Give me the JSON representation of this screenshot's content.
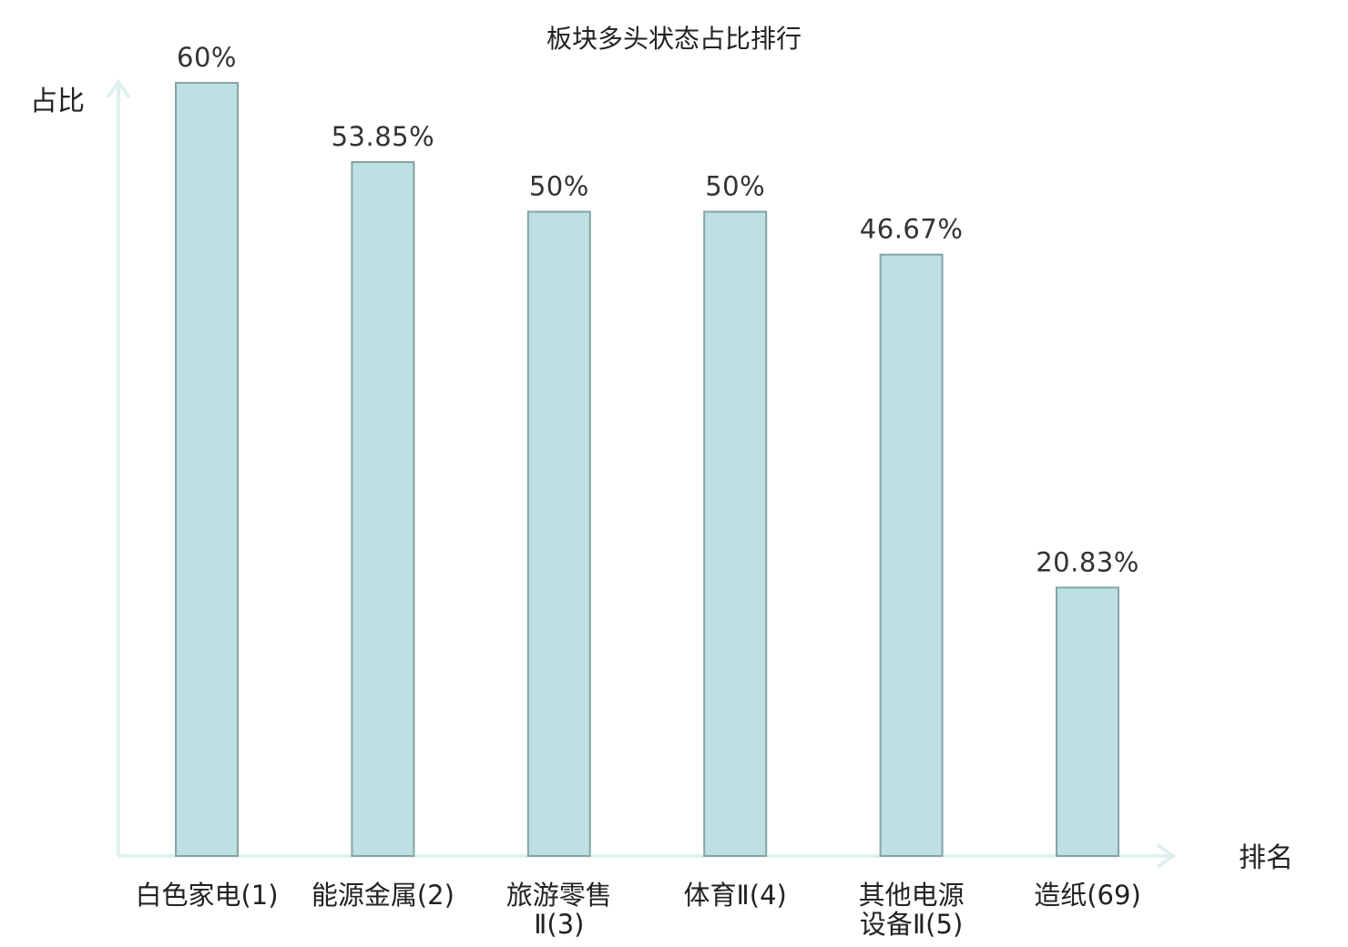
{
  "chart_data": {
    "type": "bar",
    "title": "板块多头状态占比排行",
    "ylabel": "占比",
    "xlabel": "排名",
    "ylim": [
      0,
      60
    ],
    "categories": [
      [
        "白色家电(1)"
      ],
      [
        "能源金属(2)"
      ],
      [
        "旅游零售",
        "Ⅱ(3)"
      ],
      [
        "体育Ⅱ(4)"
      ],
      [
        "其他电源",
        "设备Ⅱ(5)"
      ],
      [
        "造纸(69)"
      ]
    ],
    "values": [
      60,
      53.85,
      50,
      50,
      46.67,
      20.83
    ],
    "value_labels": [
      "60%",
      "53.85%",
      "50%",
      "50%",
      "46.67%",
      "20.83%"
    ],
    "highlight_index": 5,
    "grid": false,
    "legend": "none"
  },
  "colors": {
    "bar_fill": "#bde0e2",
    "bar_stroke": "#86a3a6",
    "axis": "#dff1ef",
    "text": "#222222",
    "highlight_text": "#e01010"
  }
}
